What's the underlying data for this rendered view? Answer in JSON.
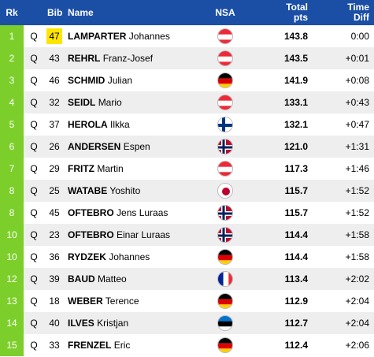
{
  "header": {
    "rank": "Rk",
    "bib": "Bib",
    "name": "Name",
    "nsa": "NSA",
    "points_line1": "Total",
    "points_line2": "pts",
    "diff_line1": "Time",
    "diff_line2": "Diff"
  },
  "colors": {
    "header_bg": "#1b4fa6",
    "rank_bg": "#7ccf2a",
    "bib_highlight": "#ffe500",
    "row_alt": "#eeeeee"
  },
  "rows": [
    {
      "rank": "1",
      "q": "Q",
      "bib": "47",
      "last": "LAMPARTER",
      "first": "Johannes",
      "nsa": "AUT",
      "flag_icon": "austria-flag-icon",
      "pts": "143.8",
      "diff": "0:00"
    },
    {
      "rank": "2",
      "q": "Q",
      "bib": "43",
      "last": "REHRL",
      "first": "Franz-Josef",
      "nsa": "AUT",
      "flag_icon": "austria-flag-icon",
      "pts": "143.5",
      "diff": "+0:01"
    },
    {
      "rank": "3",
      "q": "Q",
      "bib": "46",
      "last": "SCHMID",
      "first": "Julian",
      "nsa": "GER",
      "flag_icon": "germany-flag-icon",
      "pts": "141.9",
      "diff": "+0:08"
    },
    {
      "rank": "4",
      "q": "Q",
      "bib": "32",
      "last": "SEIDL",
      "first": "Mario",
      "nsa": "AUT",
      "flag_icon": "austria-flag-icon",
      "pts": "133.1",
      "diff": "+0:43"
    },
    {
      "rank": "5",
      "q": "Q",
      "bib": "37",
      "last": "HEROLA",
      "first": "Ilkka",
      "nsa": "FIN",
      "flag_icon": "finland-flag-icon",
      "pts": "132.1",
      "diff": "+0:47"
    },
    {
      "rank": "6",
      "q": "Q",
      "bib": "26",
      "last": "ANDERSEN",
      "first": "Espen",
      "nsa": "NOR",
      "flag_icon": "norway-flag-icon",
      "pts": "121.0",
      "diff": "+1:31"
    },
    {
      "rank": "7",
      "q": "Q",
      "bib": "29",
      "last": "FRITZ",
      "first": "Martin",
      "nsa": "AUT",
      "flag_icon": "austria-flag-icon",
      "pts": "117.3",
      "diff": "+1:46"
    },
    {
      "rank": "8",
      "q": "Q",
      "bib": "25",
      "last": "WATABE",
      "first": "Yoshito",
      "nsa": "JPN",
      "flag_icon": "japan-flag-icon",
      "pts": "115.7",
      "diff": "+1:52"
    },
    {
      "rank": "8",
      "q": "Q",
      "bib": "45",
      "last": "OFTEBRO",
      "first": "Jens Luraas",
      "nsa": "NOR",
      "flag_icon": "norway-flag-icon",
      "pts": "115.7",
      "diff": "+1:52"
    },
    {
      "rank": "10",
      "q": "Q",
      "bib": "23",
      "last": "OFTEBRO",
      "first": "Einar Luraas",
      "nsa": "NOR",
      "flag_icon": "norway-flag-icon",
      "pts": "114.4",
      "diff": "+1:58"
    },
    {
      "rank": "10",
      "q": "Q",
      "bib": "36",
      "last": "RYDZEK",
      "first": "Johannes",
      "nsa": "GER",
      "flag_icon": "germany-flag-icon",
      "pts": "114.4",
      "diff": "+1:58"
    },
    {
      "rank": "12",
      "q": "Q",
      "bib": "39",
      "last": "BAUD",
      "first": "Matteo",
      "nsa": "FRA",
      "flag_icon": "france-flag-icon",
      "pts": "113.4",
      "diff": "+2:02"
    },
    {
      "rank": "13",
      "q": "Q",
      "bib": "18",
      "last": "WEBER",
      "first": "Terence",
      "nsa": "GER",
      "flag_icon": "germany-flag-icon",
      "pts": "112.9",
      "diff": "+2:04"
    },
    {
      "rank": "14",
      "q": "Q",
      "bib": "40",
      "last": "ILVES",
      "first": "Kristjan",
      "nsa": "EST",
      "flag_icon": "estonia-flag-icon",
      "pts": "112.7",
      "diff": "+2:04"
    },
    {
      "rank": "15",
      "q": "Q",
      "bib": "33",
      "last": "FRENZEL",
      "first": "Eric",
      "nsa": "GER",
      "flag_icon": "germany-flag-icon",
      "pts": "112.4",
      "diff": "+2:06"
    }
  ]
}
